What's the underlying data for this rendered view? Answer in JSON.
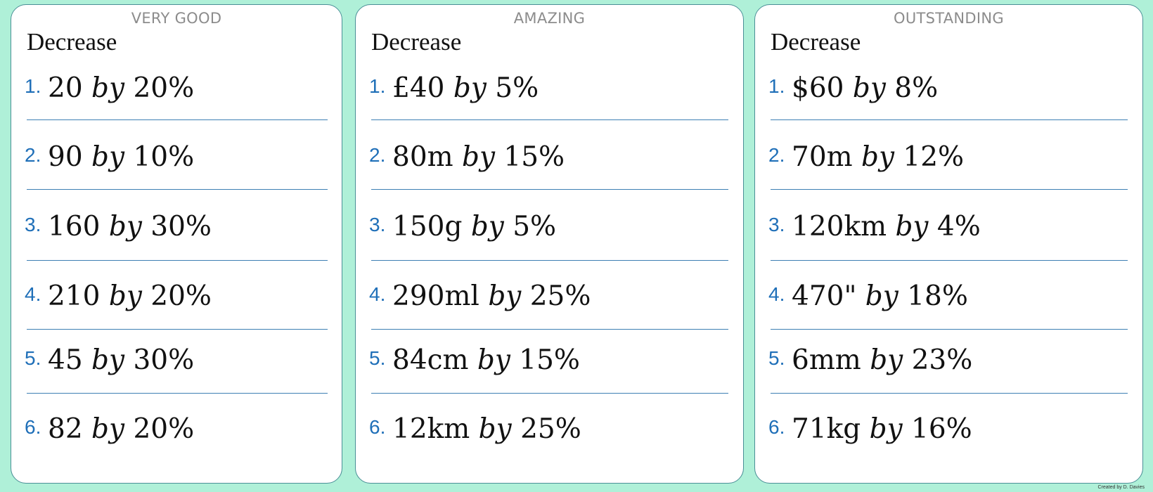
{
  "cards": [
    {
      "level": "VERY GOOD",
      "heading": "Decrease",
      "questions": [
        {
          "num": "1.",
          "amount": "20",
          "by": "by",
          "percent": "20%"
        },
        {
          "num": "2.",
          "amount": "90",
          "by": "by",
          "percent": "10%"
        },
        {
          "num": "3.",
          "amount": "160",
          "by": "by",
          "percent": "30%"
        },
        {
          "num": "4.",
          "amount": "210",
          "by": "by",
          "percent": "20%"
        },
        {
          "num": "5.",
          "amount": "45",
          "by": "by",
          "percent": "30%"
        },
        {
          "num": "6.",
          "amount": "82",
          "by": "by",
          "percent": "20%"
        }
      ]
    },
    {
      "level": "AMAZING",
      "heading": "Decrease",
      "questions": [
        {
          "num": "1.",
          "amount": "£40",
          "by": "by",
          "percent": "5%"
        },
        {
          "num": "2.",
          "amount": "80m",
          "by": "by",
          "percent": "15%"
        },
        {
          "num": "3.",
          "amount": "150g",
          "by": "by",
          "percent": "5%"
        },
        {
          "num": "4.",
          "amount": "290ml",
          "by": "by",
          "percent": "25%"
        },
        {
          "num": "5.",
          "amount": "84cm",
          "by": "by",
          "percent": "15%"
        },
        {
          "num": "6.",
          "amount": "12km",
          "by": "by",
          "percent": "25%"
        }
      ]
    },
    {
      "level": "OUTSTANDING",
      "heading": "Decrease",
      "questions": [
        {
          "num": "1.",
          "amount": "$60",
          "by": "by",
          "percent": "8%"
        },
        {
          "num": "2.",
          "amount": "70m",
          "by": "by",
          "percent": "12%"
        },
        {
          "num": "3.",
          "amount": "120km",
          "by": "by",
          "percent": "4%"
        },
        {
          "num": "4.",
          "amount": "470\"",
          "by": "by",
          "percent": "18%"
        },
        {
          "num": "5.",
          "amount": "6mm",
          "by": "by",
          "percent": "23%"
        },
        {
          "num": "6.",
          "amount": "71kg",
          "by": "by",
          "percent": "16%"
        }
      ]
    }
  ],
  "credit": "Created by D. Davies",
  "colors": {
    "background": "#aff0d8",
    "card_border": "#4a8f96",
    "number": "#1f6fb8",
    "rule": "#3d7fb3",
    "level_text": "#8c8c8c"
  }
}
